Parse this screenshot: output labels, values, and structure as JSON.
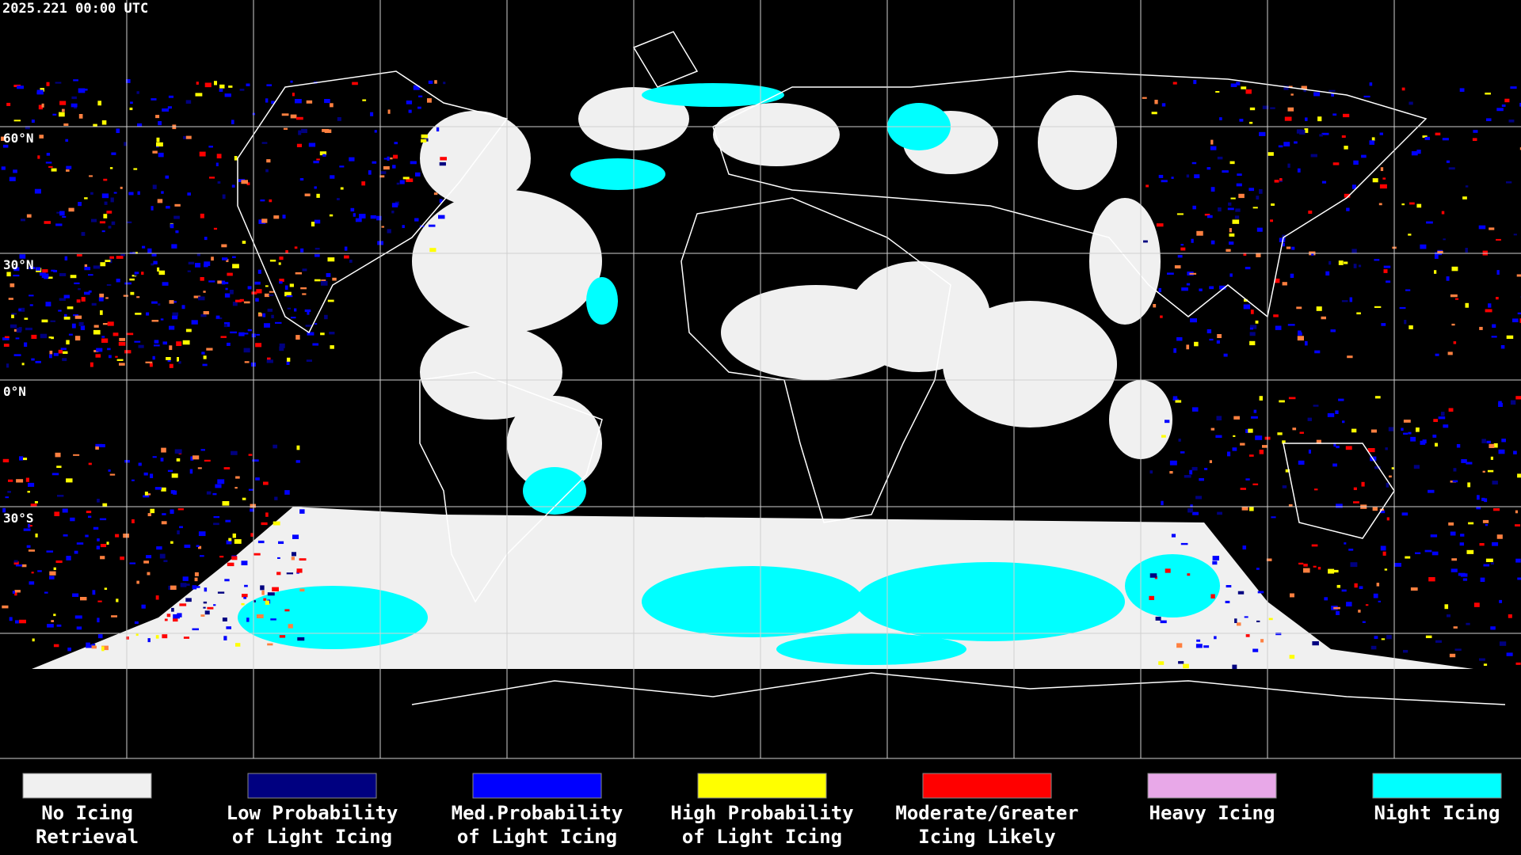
{
  "map": {
    "timestamp": "2025.221 00:00 UTC",
    "latitude_labels": [
      "60°N",
      "30°N",
      "0°N",
      "30°S"
    ]
  },
  "legend": [
    {
      "color": "#f0f0f0",
      "lines": [
        "No Icing",
        "Retrieval"
      ]
    },
    {
      "color": "#000080",
      "lines": [
        "Low Probability",
        "of Light Icing"
      ]
    },
    {
      "color": "#0000ff",
      "lines": [
        "Med.Probability",
        "of Light Icing"
      ]
    },
    {
      "color": "#ffff00",
      "lines": [
        "High Probability",
        "of Light Icing"
      ]
    },
    {
      "color": "#ff0000",
      "lines": [
        "Moderate/Greater",
        "Icing Likely"
      ]
    },
    {
      "color": "#e8a8e8",
      "lines": [
        "Heavy Icing"
      ]
    },
    {
      "color": "#00ffff",
      "lines": [
        "Night Icing"
      ]
    }
  ]
}
